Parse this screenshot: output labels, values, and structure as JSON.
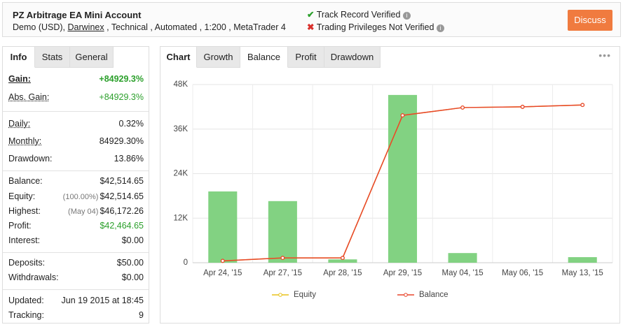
{
  "header": {
    "title": "PZ Arbitrage EA Mini Account",
    "account_type": "Demo (USD),",
    "broker": "Darwinex",
    "details": ", Technical , Automated , 1:200 , MetaTrader 4",
    "verified": "Track Record Verified",
    "not_verified": "Trading Privileges Not Verified",
    "button": "Discuss"
  },
  "left_tabs": [
    "Info",
    "Stats",
    "General"
  ],
  "stats": [
    [
      {
        "label": "Gain:",
        "value": "+84929.3%",
        "color": "#2ca02c"
      },
      {
        "label": "Abs. Gain:",
        "value": "+84929.3%",
        "color": "#2ca02c"
      }
    ],
    [
      {
        "label": "Daily:",
        "value": "0.32%"
      },
      {
        "label": "Monthly:",
        "value": "84929.30%"
      },
      {
        "label": "Drawdown:",
        "value": "13.86%"
      }
    ],
    [
      {
        "label": "Balance:",
        "value": "$42,514.65"
      },
      {
        "label": "Equity:",
        "note": "(100.00%)",
        "value": "$42,514.65"
      },
      {
        "label": "Highest:",
        "note": "(May 04)",
        "value": "$46,172.26"
      },
      {
        "label": "Profit:",
        "value": "$42,464.65",
        "color": "#2ca02c"
      },
      {
        "label": "Interest:",
        "value": "$0.00"
      }
    ],
    [
      {
        "label": "Deposits:",
        "value": "$50.00"
      },
      {
        "label": "Withdrawals:",
        "value": "$0.00"
      }
    ],
    [
      {
        "label": "Updated:",
        "value": "Jun 19 2015 at 18:45"
      },
      {
        "label": "Tracking:",
        "value": "9"
      }
    ]
  ],
  "right_tabs": [
    "Chart",
    "Growth",
    "Balance",
    "Profit",
    "Drawdown"
  ],
  "chart_data": {
    "type": "bar_line",
    "categories": [
      "Apr 24, '15",
      "Apr 27, '15",
      "Apr 28, '15",
      "Apr 29, '15",
      "May 04, '15",
      "May 06, '15",
      "May 13, '15"
    ],
    "bars": {
      "color": "#82d282",
      "values": [
        19200,
        16600,
        900,
        45200,
        2600,
        null,
        1500
      ]
    },
    "series": [
      {
        "name": "Equity",
        "color": "#e8c21a",
        "values": [
          500,
          1300,
          1300,
          39700,
          41800,
          42000,
          42500
        ]
      },
      {
        "name": "Balance",
        "color": "#e8452c",
        "values": [
          500,
          1300,
          1300,
          39700,
          41800,
          42000,
          42500
        ]
      }
    ],
    "ylim": [
      0,
      48000
    ],
    "yticks": [
      0,
      {
        "value": 12000,
        "label": "12K"
      },
      {
        "value": 24000,
        "label": "24K"
      },
      {
        "value": 36000,
        "label": "36K"
      },
      {
        "value": 48000,
        "label": "48K"
      }
    ],
    "grid": true
  }
}
